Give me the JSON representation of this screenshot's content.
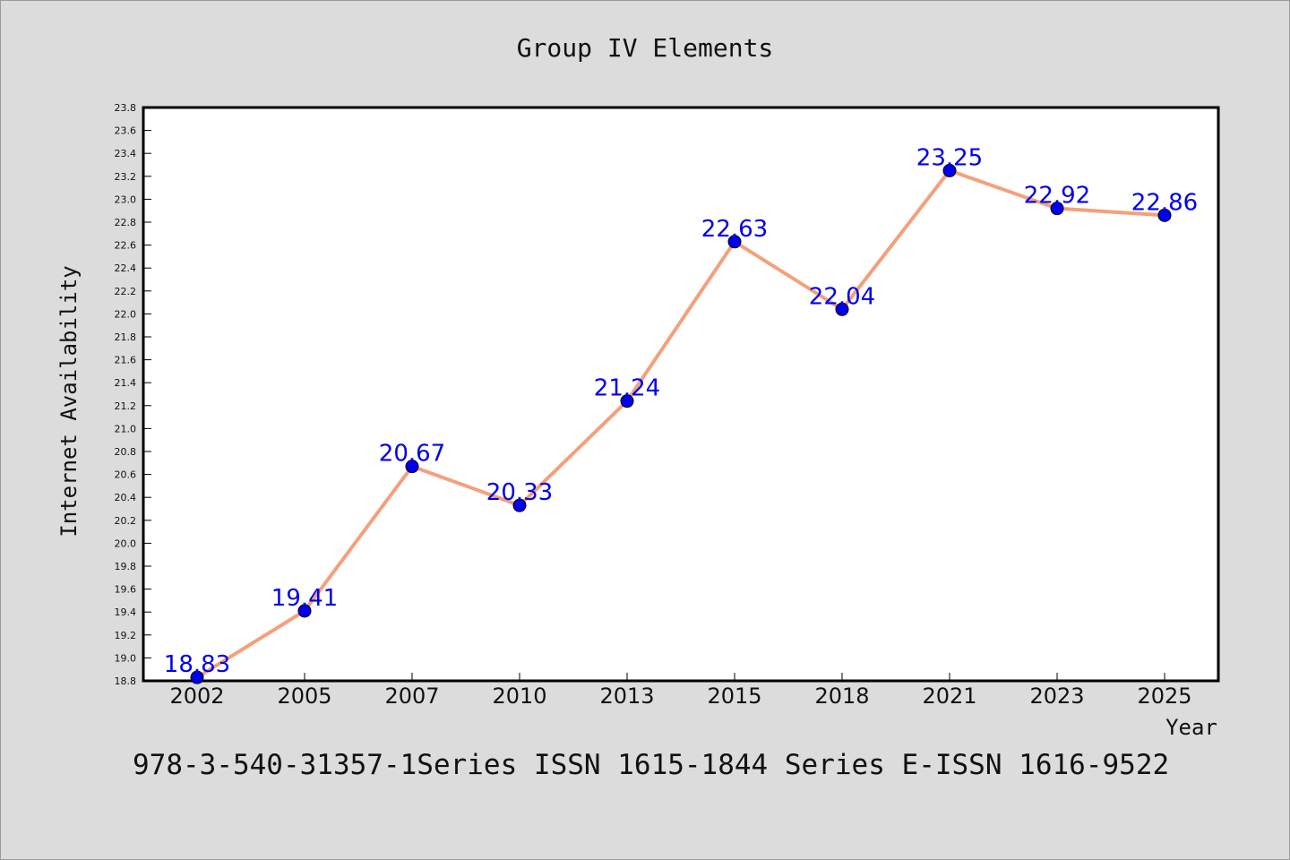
{
  "chart_data": {
    "type": "line",
    "title": "Group IV Elements",
    "xlabel": "Year",
    "ylabel": "Internet Availability",
    "categories": [
      "2002",
      "2005",
      "2007",
      "2010",
      "2013",
      "2015",
      "2018",
      "2021",
      "2023",
      "2025"
    ],
    "series": [
      {
        "values": [
          18.83,
          19.41,
          20.67,
          20.33,
          21.24,
          22.63,
          22.04,
          23.25,
          22.92,
          22.86
        ],
        "data_labels": [
          "18.83",
          "19.41",
          "20.67",
          "20.33",
          "21.24",
          "22.63",
          "22.04",
          "23.25",
          "22.92",
          "22.86"
        ],
        "line_color": "#f4a07c",
        "marker_color": "#0000ee",
        "label_color": "#0000ee"
      }
    ],
    "ylim": [
      18.8,
      23.8
    ],
    "y_ticks": [
      "18.8",
      "19.0",
      "19.2",
      "19.4",
      "19.6",
      "19.8",
      "20.0",
      "20.2",
      "20.4",
      "20.6",
      "20.8",
      "21.0",
      "21.2",
      "21.4",
      "21.6",
      "21.8",
      "22.0",
      "22.2",
      "22.4",
      "22.6",
      "22.8",
      "23.0",
      "23.2",
      "23.4",
      "23.6",
      "23.8"
    ],
    "grid": false,
    "legend": "none"
  },
  "footer_text": "978-3-540-31357-1Series ISSN 1615-1844 Series E-ISSN 1616-9522",
  "colors": {
    "background": "#dcdcdc",
    "plot_background": "#ffffff",
    "axis": "#000000"
  }
}
